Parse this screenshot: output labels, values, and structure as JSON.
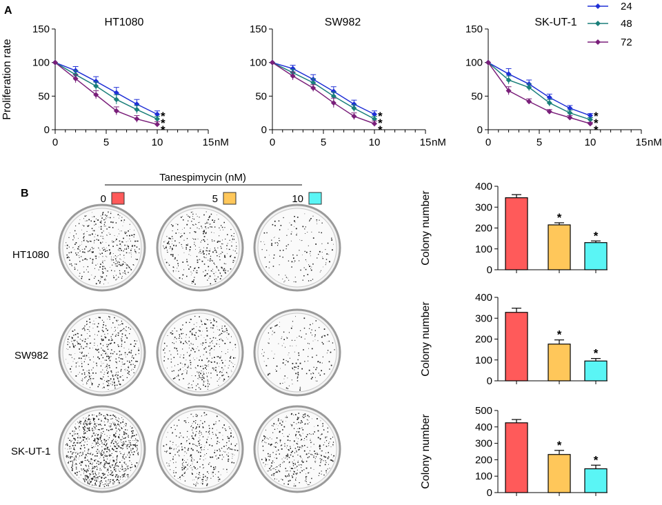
{
  "figure": {
    "panel_a_label": "A",
    "panel_b_label": "B"
  },
  "legend": {
    "items": [
      {
        "label": "24",
        "color": "#1f2fd6"
      },
      {
        "label": "48",
        "color": "#1a7f7a"
      },
      {
        "label": "72",
        "color": "#7a1f7a"
      }
    ]
  },
  "colony": {
    "treatment_label": "Tanespimycin  (nM)",
    "doses": [
      {
        "label": "0",
        "color": "#ff5a5a"
      },
      {
        "label": "5",
        "color": "#ffc75a"
      },
      {
        "label": "10",
        "color": "#5af5f5"
      }
    ],
    "cell_lines": [
      "HT1080",
      "SW982",
      "SK-UT-1"
    ]
  },
  "chart_data": [
    {
      "type": "line",
      "title": "HT1080",
      "xlabel": "",
      "ylabel": "Proliferation rate",
      "x_unit": "nM",
      "xlim": [
        0,
        15
      ],
      "ylim": [
        0,
        150
      ],
      "xticks": [
        "0",
        "5",
        "10",
        "15"
      ],
      "yticks": [
        "0",
        "50",
        "100",
        "150"
      ],
      "x": [
        0,
        2,
        4,
        6,
        8,
        10
      ],
      "series": [
        {
          "name": "24",
          "values": [
            100,
            88,
            72,
            55,
            38,
            23
          ],
          "errors": [
            0,
            6,
            7,
            8,
            7,
            5
          ]
        },
        {
          "name": "48",
          "values": [
            100,
            82,
            65,
            45,
            30,
            16
          ],
          "errors": [
            0,
            6,
            6,
            7,
            6,
            4
          ]
        },
        {
          "name": "72",
          "values": [
            100,
            76,
            52,
            28,
            16,
            8
          ],
          "errors": [
            0,
            6,
            6,
            6,
            5,
            4
          ]
        }
      ],
      "annotations": [
        "*",
        "*",
        "*"
      ]
    },
    {
      "type": "line",
      "title": "SW982",
      "xlabel": "",
      "ylabel": "",
      "x_unit": "nM",
      "xlim": [
        0,
        15
      ],
      "ylim": [
        0,
        150
      ],
      "xticks": [
        "0",
        "5",
        "10",
        "15"
      ],
      "yticks": [
        "0",
        "50",
        "100",
        "150"
      ],
      "x": [
        0,
        2,
        4,
        6,
        8,
        10
      ],
      "series": [
        {
          "name": "24",
          "values": [
            100,
            91,
            75,
            57,
            38,
            23
          ],
          "errors": [
            0,
            5,
            7,
            7,
            6,
            5
          ]
        },
        {
          "name": "48",
          "values": [
            100,
            85,
            70,
            50,
            32,
            16
          ],
          "errors": [
            0,
            5,
            6,
            6,
            5,
            4
          ]
        },
        {
          "name": "72",
          "values": [
            100,
            80,
            62,
            40,
            20,
            9
          ],
          "errors": [
            0,
            6,
            5,
            7,
            5,
            4
          ]
        }
      ],
      "annotations": [
        "*",
        "*",
        "*"
      ]
    },
    {
      "type": "line",
      "title": "SK-UT-1",
      "xlabel": "",
      "ylabel": "",
      "x_unit": "nM",
      "xlim": [
        0,
        15
      ],
      "ylim": [
        0,
        150
      ],
      "xticks": [
        "0",
        "5",
        "10",
        "15"
      ],
      "yticks": [
        "0",
        "50",
        "100",
        "150"
      ],
      "x": [
        0,
        2,
        4,
        6,
        8,
        10
      ],
      "series": [
        {
          "name": "24",
          "values": [
            100,
            83,
            68,
            48,
            32,
            21
          ],
          "errors": [
            0,
            8,
            6,
            5,
            4,
            3
          ]
        },
        {
          "name": "48",
          "values": [
            100,
            74,
            63,
            40,
            25,
            15
          ],
          "errors": [
            0,
            6,
            5,
            5,
            4,
            3
          ]
        },
        {
          "name": "72",
          "values": [
            100,
            58,
            42,
            27,
            18,
            9
          ],
          "errors": [
            0,
            6,
            4,
            3,
            3,
            2
          ]
        }
      ],
      "annotations": [
        "*",
        "*",
        "*"
      ]
    },
    {
      "type": "bar",
      "title": "",
      "xlabel": "",
      "ylabel": "Colony number",
      "ylim": [
        0,
        400
      ],
      "yticks": [
        "0",
        "100",
        "200",
        "300",
        "400"
      ],
      "categories": [
        "0",
        "5",
        "10"
      ],
      "values": [
        345,
        215,
        130
      ],
      "errors": [
        15,
        10,
        8
      ],
      "annotations": [
        "",
        "*",
        "*"
      ]
    },
    {
      "type": "bar",
      "title": "",
      "xlabel": "",
      "ylabel": "Colony number",
      "ylim": [
        0,
        400
      ],
      "yticks": [
        "0",
        "100",
        "200",
        "300",
        "400"
      ],
      "categories": [
        "0",
        "5",
        "10"
      ],
      "values": [
        328,
        176,
        95
      ],
      "errors": [
        20,
        20,
        12
      ],
      "annotations": [
        "",
        "*",
        "*"
      ]
    },
    {
      "type": "bar",
      "title": "",
      "xlabel": "",
      "ylabel": "Colony number",
      "ylim": [
        0,
        500
      ],
      "yticks": [
        "0",
        "100",
        "200",
        "300",
        "400",
        "500"
      ],
      "categories": [
        "0",
        "5",
        "10"
      ],
      "values": [
        425,
        232,
        145
      ],
      "errors": [
        20,
        25,
        22
      ],
      "annotations": [
        "",
        "*",
        "*"
      ]
    }
  ]
}
